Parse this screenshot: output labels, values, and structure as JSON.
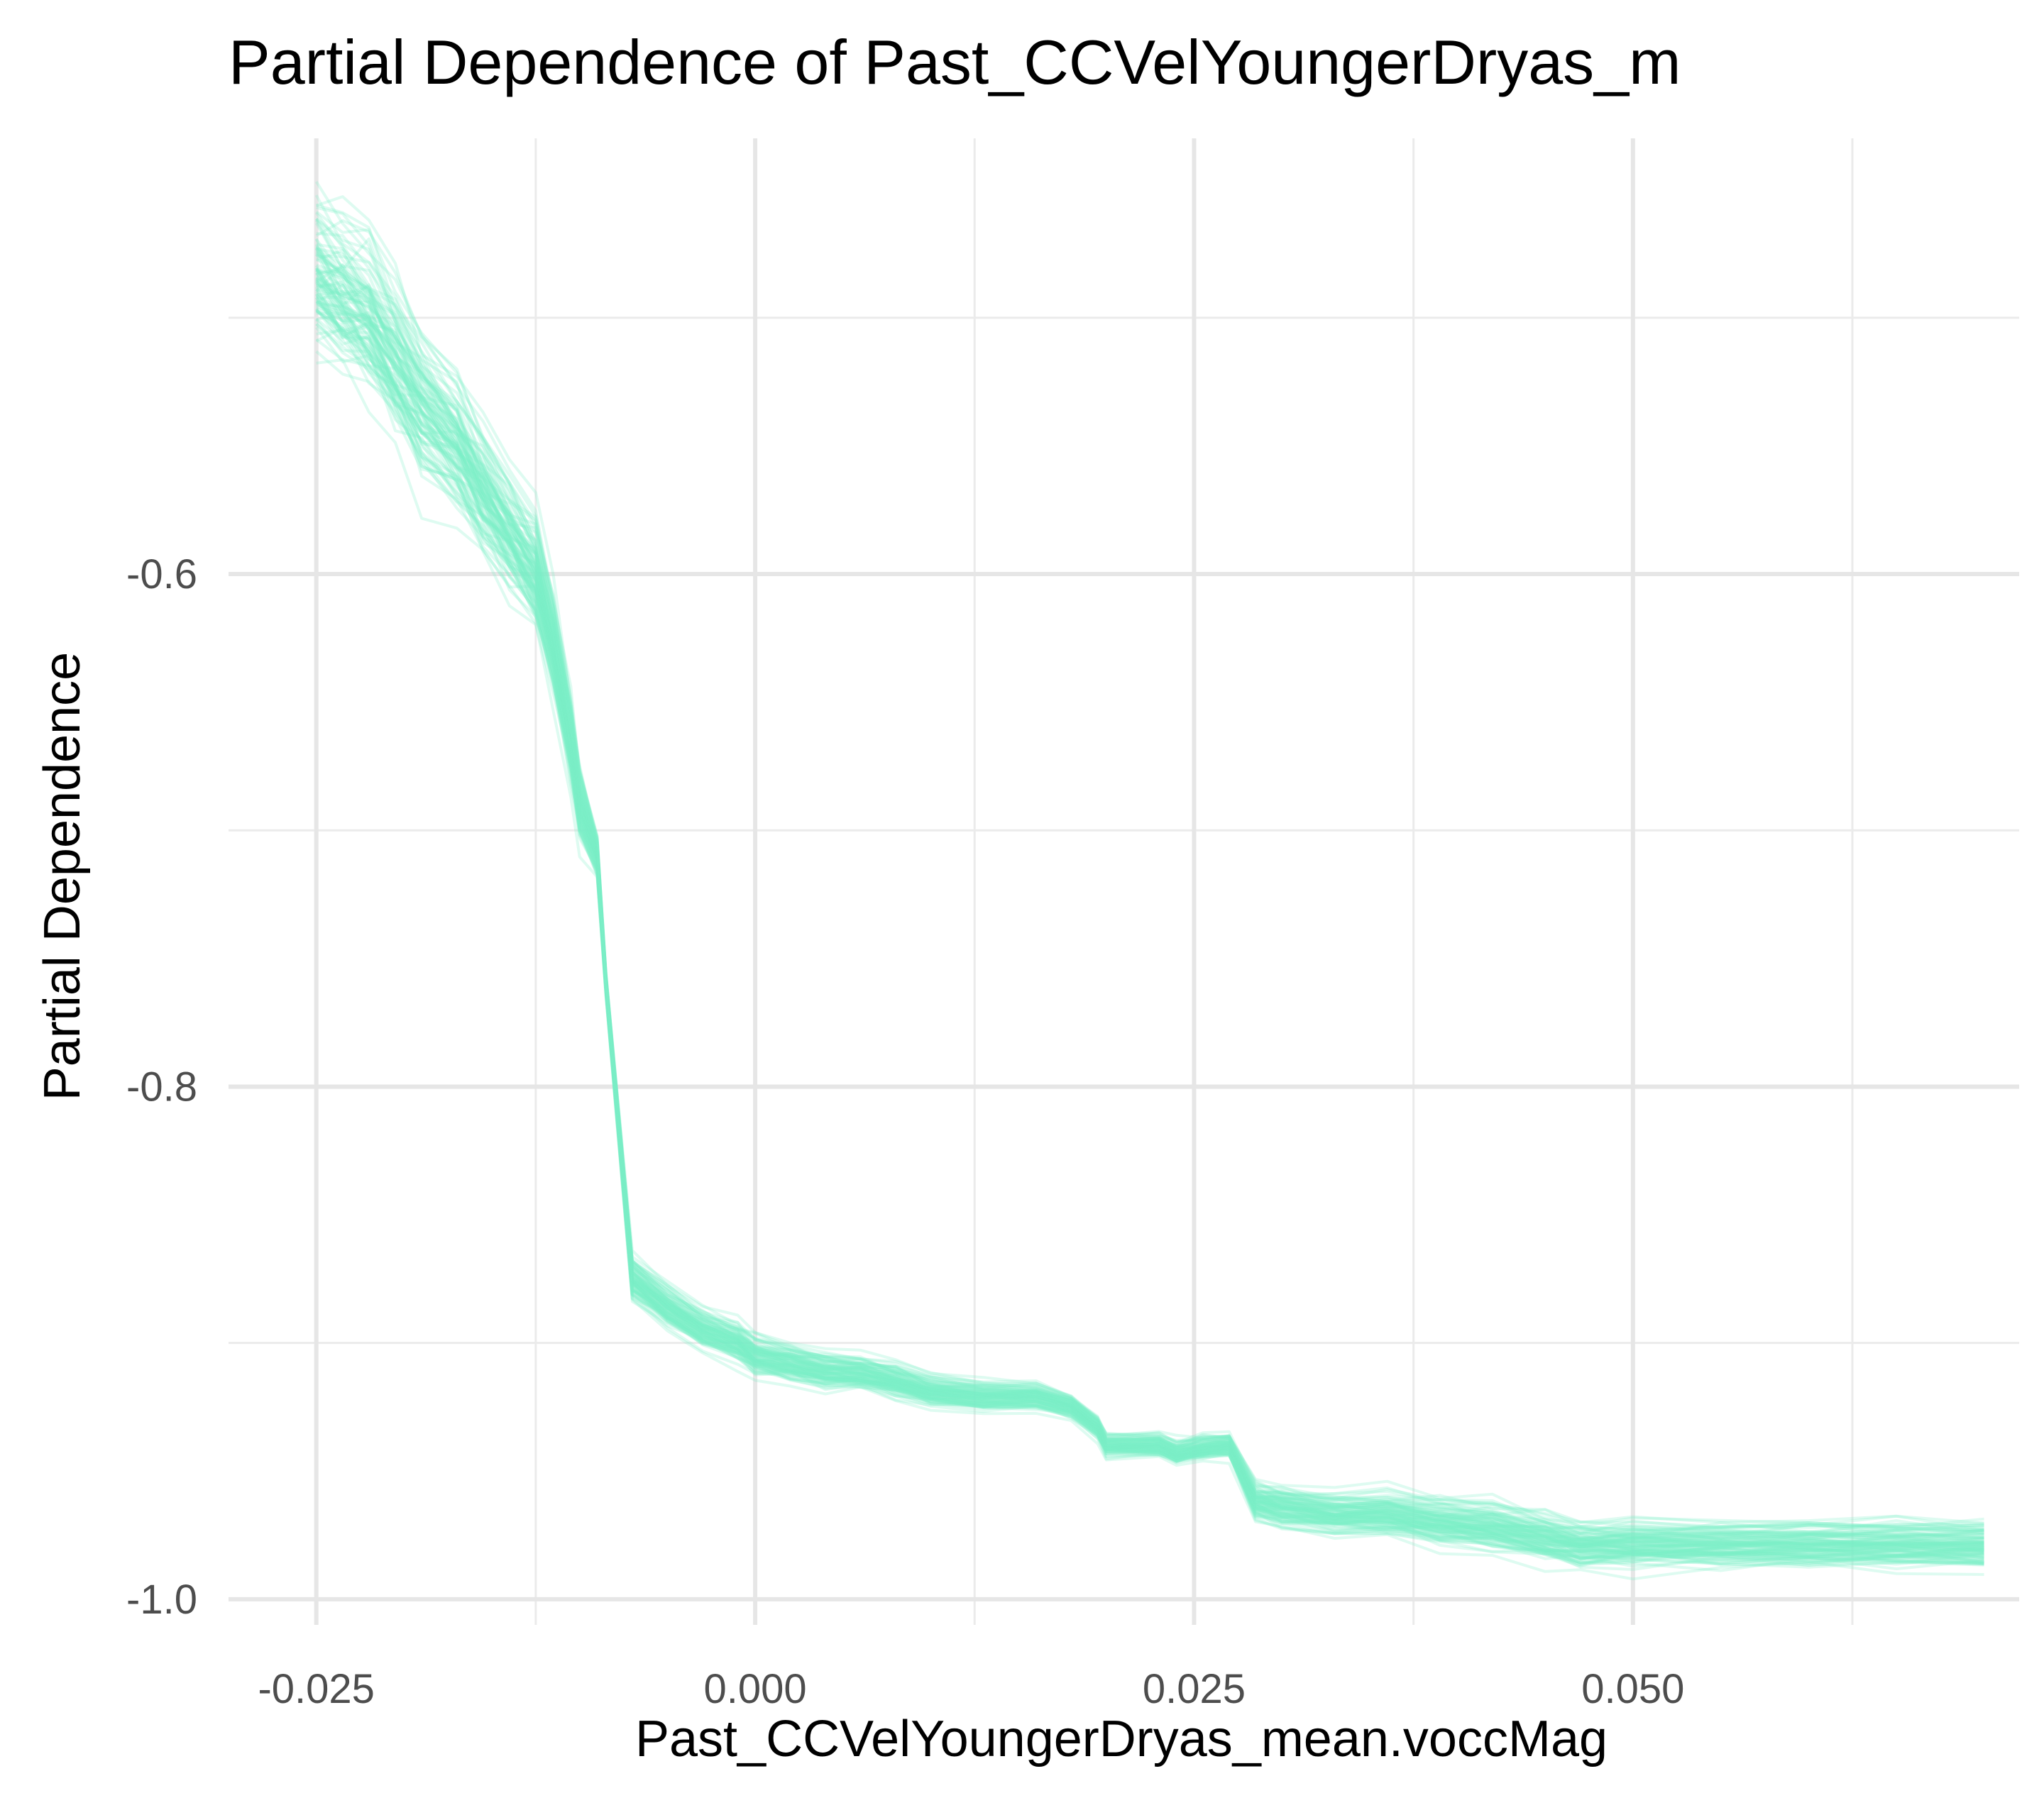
{
  "chart_data": {
    "type": "line",
    "title": "Partial Dependence of Past_CCVelYoungerDryas_m",
    "xlabel": "Past_CCVelYoungerDryas_mean.voccMag",
    "ylabel": "Partial Dependence",
    "xlim": [
      -0.03,
      0.072
    ],
    "ylim": [
      -1.01,
      -0.43
    ],
    "x_ticks": [
      -0.025,
      0.0,
      0.025,
      0.05
    ],
    "x_tick_labels": [
      "-0.025",
      "0.000",
      "0.025",
      "0.050"
    ],
    "y_ticks": [
      -0.6,
      -0.8,
      -1.0
    ],
    "y_tick_labels": [
      "-0.6",
      "-0.8",
      "-1.0"
    ],
    "x_minor_ticks": [
      -0.0125,
      0.0125,
      0.0375,
      0.0625
    ],
    "y_minor_ticks": [
      -0.5,
      -0.7,
      -0.9
    ],
    "grid": true,
    "legend": "none",
    "line_color": "#7BEFC8",
    "line_opacity": 0.25,
    "n_curves": 100,
    "center_curve": {
      "x": [
        -0.025,
        -0.0235,
        -0.022,
        -0.0205,
        -0.019,
        -0.017,
        -0.0155,
        -0.014,
        -0.0125,
        -0.0115,
        -0.0105,
        -0.01,
        -0.009,
        -0.0085,
        -0.007,
        -0.005,
        -0.003,
        -0.001,
        0.0,
        0.002,
        0.004,
        0.006,
        0.008,
        0.01,
        0.013,
        0.016,
        0.018,
        0.0195,
        0.02,
        0.023,
        0.024,
        0.0255,
        0.027,
        0.0285,
        0.03,
        0.033,
        0.036,
        0.039,
        0.042,
        0.045,
        0.047,
        0.05,
        0.055,
        0.06,
        0.065,
        0.07
      ],
      "y": [
        -0.485,
        -0.492,
        -0.5,
        -0.518,
        -0.535,
        -0.55,
        -0.568,
        -0.585,
        -0.6,
        -0.628,
        -0.665,
        -0.69,
        -0.71,
        -0.76,
        -0.875,
        -0.886,
        -0.895,
        -0.9,
        -0.905,
        -0.908,
        -0.911,
        -0.912,
        -0.915,
        -0.919,
        -0.921,
        -0.921,
        -0.925,
        -0.933,
        -0.94,
        -0.94,
        -0.943,
        -0.941,
        -0.94,
        -0.962,
        -0.964,
        -0.967,
        -0.967,
        -0.97,
        -0.972,
        -0.976,
        -0.979,
        -0.979,
        -0.979,
        -0.979,
        -0.979,
        -0.979
      ]
    },
    "spread_curve": {
      "x": [
        -0.025,
        -0.017,
        -0.0125,
        -0.01,
        -0.0085,
        -0.007,
        -0.003,
        0.0,
        0.01,
        0.018,
        0.02,
        0.027,
        0.0285,
        0.04,
        0.05,
        0.07
      ],
      "y": [
        0.04,
        0.035,
        0.028,
        0.02,
        0.006,
        0.012,
        0.01,
        0.01,
        0.008,
        0.006,
        0.006,
        0.006,
        0.01,
        0.012,
        0.012,
        0.012
      ]
    }
  }
}
